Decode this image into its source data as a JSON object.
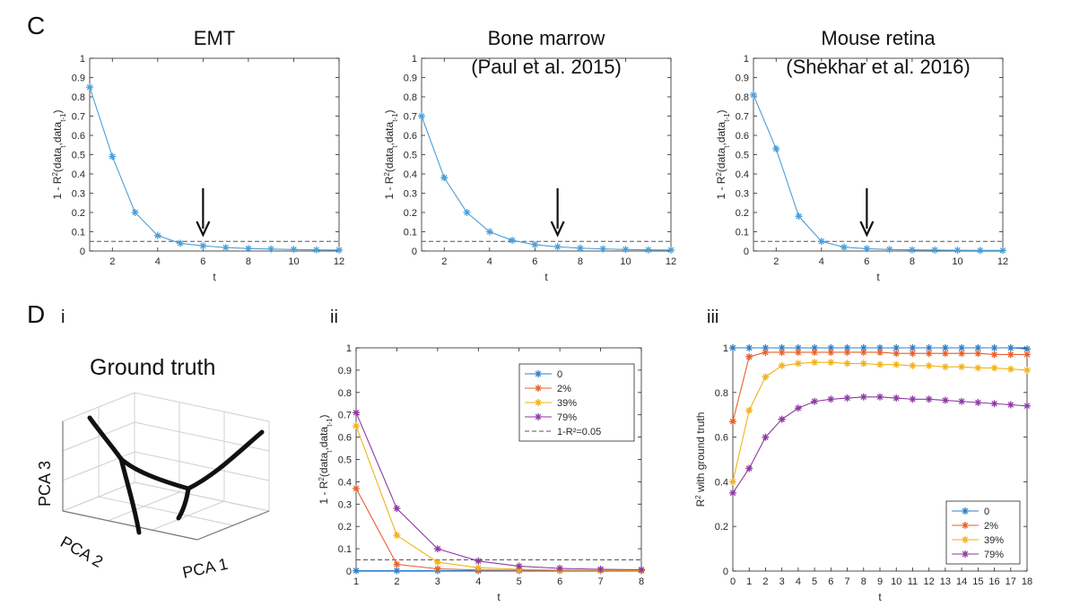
{
  "panels": {
    "C": "C",
    "D": "D",
    "i": "i",
    "ii": "ii",
    "iii": "iii"
  },
  "ground_truth": {
    "title": "Ground truth",
    "axis_labels": [
      "PCA 3",
      "PCA 2",
      "PCA 1"
    ]
  },
  "colors": {
    "c_series": "#4a9fd8",
    "s0": "#2f7fc8",
    "s2": "#e8602c",
    "s39": "#f2b21a",
    "s79": "#8e3aa3",
    "dashed": "#555555",
    "arrow": "#111111"
  },
  "chart_data": [
    {
      "id": "c1",
      "type": "line",
      "title": [
        "EMT"
      ],
      "xlabel": "t",
      "ylabel_base": "1 - R",
      "ylabel_sup": "2",
      "ylabel_mid": "(data",
      "ylabel_sub1": "t",
      "ylabel_sep": ",data",
      "ylabel_sub2": "t-1",
      "ylabel_end": ")",
      "xlim": [
        1,
        12
      ],
      "ylim": [
        0,
        1
      ],
      "xticks": [
        2,
        4,
        6,
        8,
        10,
        12
      ],
      "yticks": [
        0,
        0.1,
        0.2,
        0.3,
        0.4,
        0.5,
        0.6,
        0.7,
        0.8,
        0.9,
        1
      ],
      "threshold": 0.05,
      "arrow_x": 6,
      "series": [
        {
          "x": [
            1,
            2,
            3,
            4,
            5,
            6,
            7,
            8,
            9,
            10,
            11,
            12
          ],
          "values": [
            0.85,
            0.49,
            0.2,
            0.08,
            0.04,
            0.027,
            0.018,
            0.013,
            0.01,
            0.008,
            0.006,
            0.005
          ]
        }
      ]
    },
    {
      "id": "c2",
      "type": "line",
      "title": [
        "Bone marrow",
        "(Paul et al. 2015)"
      ],
      "xlabel": "t",
      "ylabel_base": "1 - R",
      "ylabel_sup": "2",
      "ylabel_mid": "(data",
      "ylabel_sub1": "t",
      "ylabel_sep": ",data",
      "ylabel_sub2": "t-1",
      "ylabel_end": ")",
      "xlim": [
        1,
        12
      ],
      "ylim": [
        0,
        1
      ],
      "xticks": [
        2,
        4,
        6,
        8,
        10,
        12
      ],
      "yticks": [
        0,
        0.1,
        0.2,
        0.3,
        0.4,
        0.5,
        0.6,
        0.7,
        0.8,
        0.9,
        1
      ],
      "threshold": 0.05,
      "arrow_x": 7,
      "series": [
        {
          "x": [
            1,
            2,
            3,
            4,
            5,
            6,
            7,
            8,
            9,
            10,
            11,
            12
          ],
          "values": [
            0.7,
            0.38,
            0.2,
            0.1,
            0.055,
            0.033,
            0.022,
            0.015,
            0.011,
            0.008,
            0.006,
            0.005
          ]
        }
      ]
    },
    {
      "id": "c3",
      "type": "line",
      "title": [
        "Mouse retina",
        "(Shekhar et al. 2016)"
      ],
      "xlabel": "t",
      "ylabel_base": "1 - R",
      "ylabel_sup": "2",
      "ylabel_mid": "(data",
      "ylabel_sub1": "t",
      "ylabel_sep": ",data",
      "ylabel_sub2": "t-1",
      "ylabel_end": ")",
      "xlim": [
        1,
        12
      ],
      "ylim": [
        0,
        1
      ],
      "xticks": [
        2,
        4,
        6,
        8,
        10,
        12
      ],
      "yticks": [
        0,
        0.1,
        0.2,
        0.3,
        0.4,
        0.5,
        0.6,
        0.7,
        0.8,
        0.9,
        1
      ],
      "threshold": 0.05,
      "arrow_x": 6,
      "series": [
        {
          "x": [
            1,
            2,
            3,
            4,
            5,
            6,
            7,
            8,
            9,
            10,
            11,
            12
          ],
          "values": [
            0.81,
            0.53,
            0.18,
            0.05,
            0.02,
            0.012,
            0.008,
            0.006,
            0.005,
            0.004,
            0.003,
            0.003
          ]
        }
      ]
    },
    {
      "id": "d2",
      "type": "line",
      "xlabel": "t",
      "ylabel_base": "1 - R",
      "ylabel_sup": "2",
      "ylabel_mid": "(data",
      "ylabel_sub1": "t",
      "ylabel_sep": ",data",
      "ylabel_sub2": "t-1",
      "ylabel_end": ")",
      "xlim": [
        1,
        8
      ],
      "ylim": [
        0,
        1
      ],
      "xticks": [
        1,
        2,
        3,
        4,
        5,
        6,
        7,
        8
      ],
      "yticks": [
        0,
        0.1,
        0.2,
        0.3,
        0.4,
        0.5,
        0.6,
        0.7,
        0.8,
        0.9,
        1
      ],
      "threshold": 0.05,
      "legend": "top-right",
      "threshold_label": "1-R²=0.05",
      "series": [
        {
          "name": "0",
          "x": [
            1,
            2,
            3,
            4,
            5,
            6,
            7,
            8
          ],
          "values": [
            0.002,
            0.002,
            0.002,
            0.002,
            0.002,
            0.002,
            0.002,
            0.002
          ]
        },
        {
          "name": "2%",
          "x": [
            1,
            2,
            3,
            4,
            5,
            6,
            7,
            8
          ],
          "values": [
            0.37,
            0.03,
            0.01,
            0.005,
            0.004,
            0.003,
            0.003,
            0.002
          ]
        },
        {
          "name": "39%",
          "x": [
            1,
            2,
            3,
            4,
            5,
            6,
            7,
            8
          ],
          "values": [
            0.65,
            0.16,
            0.04,
            0.015,
            0.008,
            0.005,
            0.004,
            0.003
          ]
        },
        {
          "name": "79%",
          "x": [
            1,
            2,
            3,
            4,
            5,
            6,
            7,
            8
          ],
          "values": [
            0.71,
            0.28,
            0.1,
            0.045,
            0.022,
            0.012,
            0.008,
            0.006
          ]
        }
      ]
    },
    {
      "id": "d3",
      "type": "line",
      "xlabel": "t",
      "ylabel_base": "R",
      "ylabel_sup": "2",
      "ylabel_rest": " with ground truth",
      "xlim": [
        0,
        18
      ],
      "ylim": [
        0,
        1
      ],
      "xticks": [
        0,
        1,
        2,
        3,
        4,
        5,
        6,
        7,
        8,
        9,
        10,
        11,
        12,
        13,
        14,
        15,
        16,
        17,
        18
      ],
      "yticks": [
        0,
        0.2,
        0.4,
        0.6,
        0.8,
        1
      ],
      "legend": "bottom-right",
      "series": [
        {
          "name": "0",
          "x": [
            0,
            1,
            2,
            3,
            4,
            5,
            6,
            7,
            8,
            9,
            10,
            11,
            12,
            13,
            14,
            15,
            16,
            17,
            18
          ],
          "values": [
            1,
            1,
            1,
            1,
            1,
            1,
            1,
            1,
            1,
            1,
            1,
            1,
            1,
            1,
            1,
            1,
            1,
            1,
            0.995
          ]
        },
        {
          "name": "2%",
          "x": [
            0,
            1,
            2,
            3,
            4,
            5,
            6,
            7,
            8,
            9,
            10,
            11,
            12,
            13,
            14,
            15,
            16,
            17,
            18
          ],
          "values": [
            0.67,
            0.96,
            0.98,
            0.98,
            0.98,
            0.98,
            0.98,
            0.98,
            0.98,
            0.98,
            0.975,
            0.975,
            0.975,
            0.975,
            0.975,
            0.975,
            0.97,
            0.97,
            0.97
          ]
        },
        {
          "name": "39%",
          "x": [
            0,
            1,
            2,
            3,
            4,
            5,
            6,
            7,
            8,
            9,
            10,
            11,
            12,
            13,
            14,
            15,
            16,
            17,
            18
          ],
          "values": [
            0.4,
            0.72,
            0.87,
            0.92,
            0.93,
            0.935,
            0.935,
            0.93,
            0.93,
            0.925,
            0.925,
            0.92,
            0.92,
            0.915,
            0.915,
            0.91,
            0.91,
            0.905,
            0.9
          ]
        },
        {
          "name": "79%",
          "x": [
            0,
            1,
            2,
            3,
            4,
            5,
            6,
            7,
            8,
            9,
            10,
            11,
            12,
            13,
            14,
            15,
            16,
            17,
            18
          ],
          "values": [
            0.35,
            0.46,
            0.6,
            0.68,
            0.73,
            0.76,
            0.77,
            0.775,
            0.78,
            0.78,
            0.775,
            0.77,
            0.77,
            0.765,
            0.76,
            0.755,
            0.75,
            0.745,
            0.74
          ]
        }
      ]
    }
  ]
}
